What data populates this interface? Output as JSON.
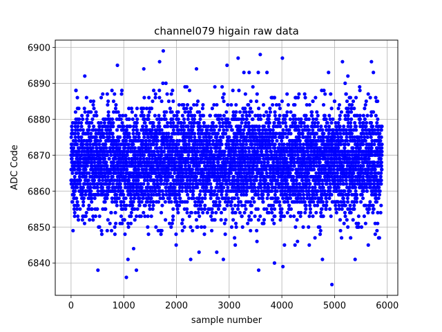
{
  "chart_data": {
    "type": "scatter",
    "title": "channel079 higain raw data",
    "xlabel": "sample number",
    "ylabel": "ADC Code",
    "xlim": [
      -300,
      6200
    ],
    "ylim": [
      6831,
      6902
    ],
    "xticks": [
      0,
      1000,
      2000,
      3000,
      4000,
      5000,
      6000
    ],
    "xtick_labels": [
      "0",
      "1000",
      "2000",
      "3000",
      "4000",
      "5000",
      "6000"
    ],
    "yticks": [
      6840,
      6850,
      6860,
      6870,
      6880,
      6890,
      6900
    ],
    "ytick_labels": [
      "6840",
      "6850",
      "6860",
      "6870",
      "6880",
      "6890",
      "6900"
    ],
    "grid": true,
    "marker_color": "#0000ff",
    "series": [
      {
        "sample_range": [
          0,
          5900
        ],
        "n_points": 5900,
        "typical_range": [
          6855,
          6882
        ],
        "center": 6868,
        "notable_points": [
          {
            "x": 1050,
            "y": 6836
          },
          {
            "x": 4950,
            "y": 6834
          },
          {
            "x": 1750,
            "y": 6899
          },
          {
            "x": 4010,
            "y": 6897
          },
          {
            "x": 3590,
            "y": 6898
          },
          {
            "x": 3170,
            "y": 6897
          },
          {
            "x": 1680,
            "y": 6896
          },
          {
            "x": 5700,
            "y": 6896
          },
          {
            "x": 5150,
            "y": 6896
          },
          {
            "x": 880,
            "y": 6895
          },
          {
            "x": 2960,
            "y": 6895
          },
          {
            "x": 3280,
            "y": 6893
          },
          {
            "x": 1380,
            "y": 6894
          },
          {
            "x": 2380,
            "y": 6894
          },
          {
            "x": 510,
            "y": 6838
          },
          {
            "x": 3560,
            "y": 6838
          },
          {
            "x": 1240,
            "y": 6838
          },
          {
            "x": 1080,
            "y": 6841
          },
          {
            "x": 2890,
            "y": 6841
          },
          {
            "x": 4770,
            "y": 6841
          },
          {
            "x": 5390,
            "y": 6841
          },
          {
            "x": 4020,
            "y": 6839
          },
          {
            "x": 3860,
            "y": 6840
          },
          {
            "x": 2270,
            "y": 6841
          }
        ]
      }
    ]
  }
}
